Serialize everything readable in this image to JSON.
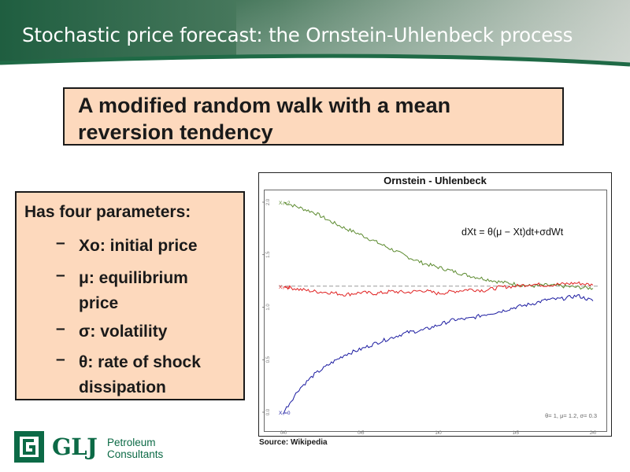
{
  "slide": {
    "title": "Stochastic price forecast: the Ornstein-Uhlenbeck process",
    "headline": "A modified random walk with a mean reversion tendency",
    "params_heading": "Has four parameters:",
    "params": [
      {
        "bullet": "–",
        "text": "Xo: initial price"
      },
      {
        "bullet": "–",
        "text": "μ: equilibrium price"
      },
      {
        "bullet": "–",
        "text": "σ: volatility"
      },
      {
        "bullet": "–",
        "text": "θ: rate of shock dissipation"
      }
    ],
    "source": "Source: Wikipedia"
  },
  "logo": {
    "mark": "GLJ",
    "line1": "Petroleum",
    "line2": "Consultants",
    "color": "#0c6a46"
  },
  "colors": {
    "header_green": "#2e6a4a",
    "box_fill": "#fdd9bd",
    "green_series": "#5b8a2e",
    "red_series": "#e02020",
    "blue_series": "#1a1aa0"
  },
  "chart_data": {
    "type": "line",
    "title": "Ornstein - Uhlenbeck",
    "equation": "dXt = θ(μ − Xt)dt+σdWt",
    "params_note": "θ= 1, μ= 1.2, σ= 0.3",
    "x_ticks": [
      "0.0",
      "0.5",
      "1.0",
      "1.5",
      "2.0"
    ],
    "y_ticks": [
      "0.0",
      "0.5",
      "1.0",
      "1.5",
      "2.0"
    ],
    "xlim": [
      0,
      2
    ],
    "ylim": [
      0,
      2
    ],
    "mean": 1.2,
    "series": [
      {
        "label": "X₀=2",
        "color": "#5b8a2e",
        "x": [
          0.0,
          0.1,
          0.2,
          0.3,
          0.4,
          0.5,
          0.6,
          0.7,
          0.8,
          0.9,
          1.0,
          1.1,
          1.2,
          1.3,
          1.4,
          1.5,
          1.6,
          1.7,
          1.8,
          1.9,
          2.0
        ],
        "values": [
          2.0,
          1.95,
          1.9,
          1.82,
          1.75,
          1.69,
          1.62,
          1.55,
          1.48,
          1.42,
          1.38,
          1.34,
          1.3,
          1.27,
          1.24,
          1.22,
          1.2,
          1.21,
          1.2,
          1.19,
          1.18
        ]
      },
      {
        "label": "X₀=μ",
        "color": "#e02020",
        "x": [
          0.0,
          0.1,
          0.2,
          0.3,
          0.4,
          0.5,
          0.6,
          0.7,
          0.8,
          0.9,
          1.0,
          1.1,
          1.2,
          1.3,
          1.4,
          1.5,
          1.6,
          1.7,
          1.8,
          1.9,
          2.0
        ],
        "values": [
          1.2,
          1.17,
          1.15,
          1.14,
          1.12,
          1.14,
          1.13,
          1.15,
          1.14,
          1.16,
          1.13,
          1.15,
          1.17,
          1.16,
          1.19,
          1.2,
          1.22,
          1.21,
          1.22,
          1.23,
          1.21
        ]
      },
      {
        "label": "X₀=0",
        "color": "#1a1aa0",
        "x": [
          0.0,
          0.1,
          0.2,
          0.3,
          0.4,
          0.5,
          0.6,
          0.7,
          0.8,
          0.9,
          1.0,
          1.1,
          1.2,
          1.3,
          1.4,
          1.5,
          1.6,
          1.7,
          1.8,
          1.9,
          2.0
        ],
        "values": [
          0.0,
          0.22,
          0.36,
          0.46,
          0.55,
          0.6,
          0.66,
          0.71,
          0.76,
          0.78,
          0.83,
          0.88,
          0.89,
          0.93,
          0.96,
          1.0,
          1.03,
          1.07,
          1.08,
          1.11,
          1.06
        ]
      }
    ]
  }
}
